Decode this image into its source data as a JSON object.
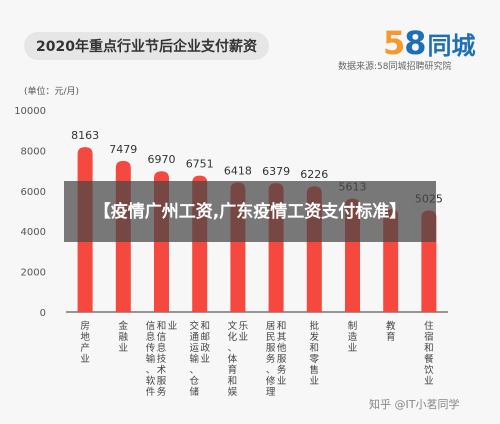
{
  "colors": {
    "bar": "#f5483f",
    "logo_five": "#f29a2e",
    "logo_eight": "#1f6fb5",
    "axis": "#333333"
  },
  "header": {
    "logo_number": "58",
    "logo_text": "同城",
    "source": "数据来源:58同城招聘研究院"
  },
  "overlay_headline": "【疫情广州工资,广东疫情工资支付标准】",
  "watermark": "知乎 @IT小茗同学",
  "chart_data": {
    "type": "bar",
    "title": "2020年重点行业节后企业支付薪资",
    "unit_label": "(单位：元/月)",
    "categories": [
      "房地产业",
      "金融业",
      "信息传输、软件和信息技术服务业",
      "交通运输、仓储和邮政业",
      "文化、体育和娱乐业",
      "居民服务、修理和其他服务业",
      "批发和零售业",
      "制造业",
      "教育",
      "住宿和餐饮业"
    ],
    "values": [
      8163,
      7479,
      6970,
      6751,
      6418,
      6379,
      6226,
      5613,
      5100,
      5025
    ],
    "value_labels": [
      "8163",
      "7479",
      "6970",
      "6751",
      "6418",
      "6379",
      "6226",
      "5613",
      "",
      "5025"
    ],
    "ylim": [
      0,
      10000
    ],
    "yticks": [
      0,
      2000,
      4000,
      6000,
      8000,
      10000
    ],
    "ytick_labels": [
      "0",
      "2000",
      "4000",
      "6000",
      "8000",
      "10000"
    ],
    "grid": false
  }
}
